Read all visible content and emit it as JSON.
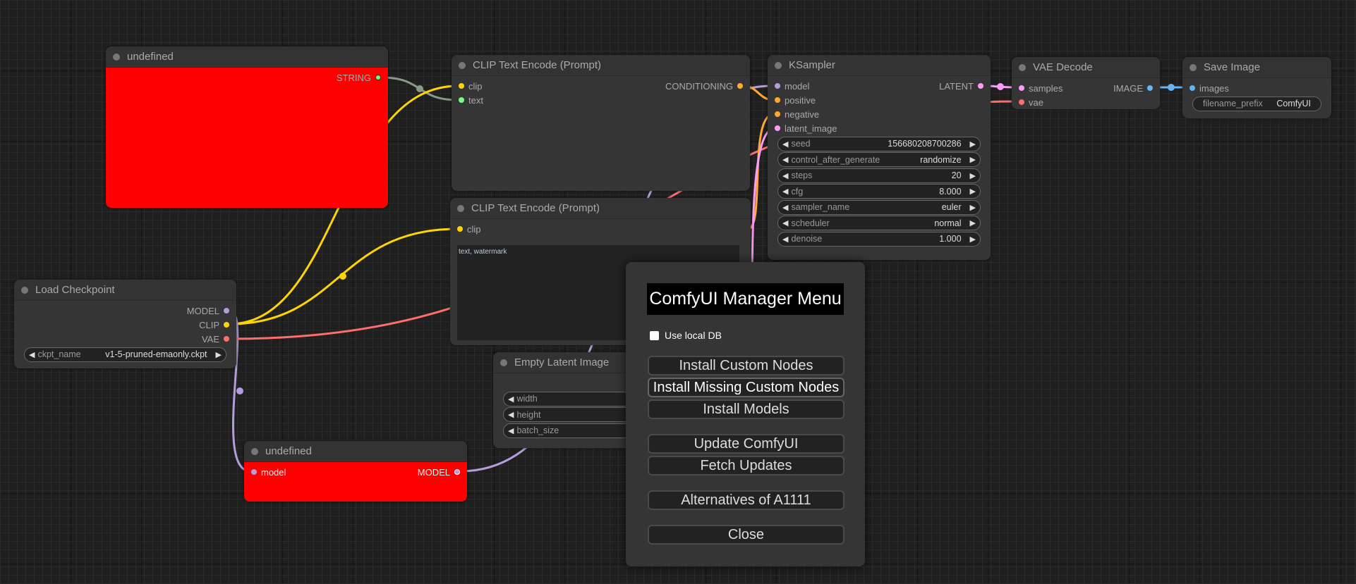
{
  "colors": {
    "model": "#b39ddb",
    "clip": "#ffd500",
    "vae": "#ff6e6e",
    "conditioning": "#ffa931",
    "latent": "#ff9cf9",
    "image": "#64b5f6",
    "string": "#77ff77",
    "error_node": "#ff0000"
  },
  "node_undefined_1": {
    "title": "undefined",
    "outputs": [
      "STRING"
    ]
  },
  "clip_encode_1": {
    "title": "CLIP Text Encode (Prompt)",
    "inputs": [
      "clip",
      "text"
    ],
    "outputs": [
      "CONDITIONING"
    ]
  },
  "ksampler": {
    "title": "KSampler",
    "inputs": [
      "model",
      "positive",
      "negative",
      "latent_image"
    ],
    "outputs": [
      "LATENT"
    ],
    "widgets": [
      {
        "label": "seed",
        "value": "156680208700286"
      },
      {
        "label": "control_after_generate",
        "value": "randomize"
      },
      {
        "label": "steps",
        "value": "20"
      },
      {
        "label": "cfg",
        "value": "8.000"
      },
      {
        "label": "sampler_name",
        "value": "euler"
      },
      {
        "label": "scheduler",
        "value": "normal"
      },
      {
        "label": "denoise",
        "value": "1.000"
      }
    ]
  },
  "vae_decode": {
    "title": "VAE Decode",
    "inputs": [
      "samples",
      "vae"
    ],
    "outputs": [
      "IMAGE"
    ]
  },
  "save_image": {
    "title": "Save Image",
    "inputs": [
      "images"
    ],
    "widgets": [
      {
        "label": "filename_prefix",
        "value": "ComfyUI"
      }
    ]
  },
  "clip_encode_2": {
    "title": "CLIP Text Encode (Prompt)",
    "inputs": [
      "clip"
    ],
    "text": "text, watermark"
  },
  "load_checkpoint": {
    "title": "Load Checkpoint",
    "outputs": [
      "MODEL",
      "CLIP",
      "VAE"
    ],
    "widgets": [
      {
        "label": "ckpt_name",
        "value": "v1-5-pruned-emaonly.ckpt"
      }
    ]
  },
  "empty_latent": {
    "title": "Empty Latent Image",
    "widgets": [
      {
        "label": "width"
      },
      {
        "label": "height"
      },
      {
        "label": "batch_size"
      }
    ]
  },
  "node_undefined_2": {
    "title": "undefined",
    "inputs": [
      "model"
    ],
    "outputs": [
      "MODEL"
    ]
  },
  "manager": {
    "title": "ComfyUI Manager Menu",
    "use_local_db": "Use local DB",
    "use_local_db_checked": false,
    "buttons": [
      "Install Custom Nodes",
      "Install Missing Custom Nodes",
      "Install Models",
      "Update ComfyUI",
      "Fetch Updates",
      "Alternatives of A1111",
      "Close"
    ]
  }
}
